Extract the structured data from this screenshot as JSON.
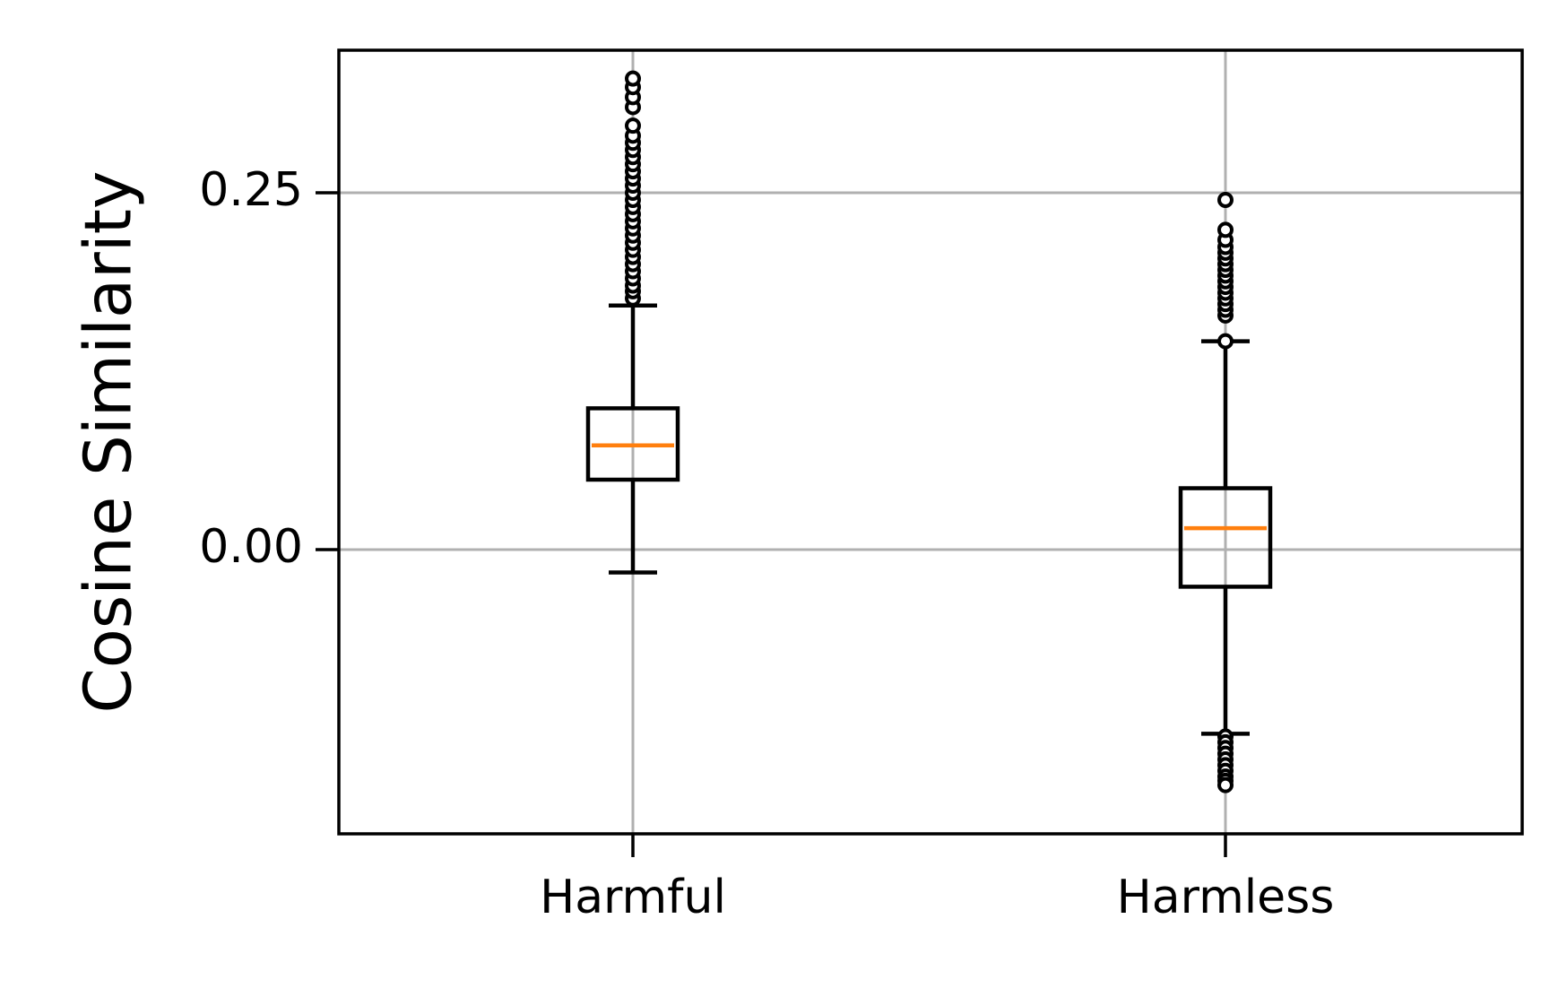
{
  "chart_data": {
    "type": "box",
    "title": "",
    "xlabel": "",
    "ylabel": "Cosine Similarity",
    "categories": [
      "Harmful",
      "Harmless"
    ],
    "ylim": [
      -0.2,
      0.35
    ],
    "yticks": [
      0.0,
      0.25
    ],
    "ytick_labels": [
      "0.00",
      "0.25"
    ],
    "grid": true,
    "series": [
      {
        "category": "Harmful",
        "whisker_low": -0.016,
        "q1": 0.049,
        "median": 0.073,
        "q3": 0.099,
        "whisker_high": 0.171,
        "outliers": [
          0.176,
          0.181,
          0.185,
          0.19,
          0.195,
          0.2,
          0.205,
          0.21,
          0.215,
          0.22,
          0.225,
          0.23,
          0.235,
          0.24,
          0.245,
          0.25,
          0.255,
          0.26,
          0.265,
          0.27,
          0.275,
          0.28,
          0.285,
          0.29,
          0.297,
          0.31,
          0.317,
          0.324,
          0.33
        ]
      },
      {
        "category": "Harmless",
        "whisker_low": -0.129,
        "q1": -0.026,
        "median": 0.015,
        "q3": 0.043,
        "whisker_high": 0.146,
        "outliers": [
          0.146,
          0.164,
          0.168,
          0.172,
          0.176,
          0.18,
          0.184,
          0.188,
          0.192,
          0.196,
          0.2,
          0.204,
          0.208,
          0.212,
          0.217,
          0.224,
          0.245,
          -0.131,
          -0.135,
          -0.139,
          -0.143,
          -0.147,
          -0.151,
          -0.155,
          -0.159,
          -0.162,
          -0.165
        ]
      }
    ],
    "colors": {
      "box": "#000000",
      "median": "#ff7f0e",
      "grid": "#b0b0b0",
      "outlier_fill": "#ffffff",
      "outlier_edge": "#000000"
    }
  }
}
